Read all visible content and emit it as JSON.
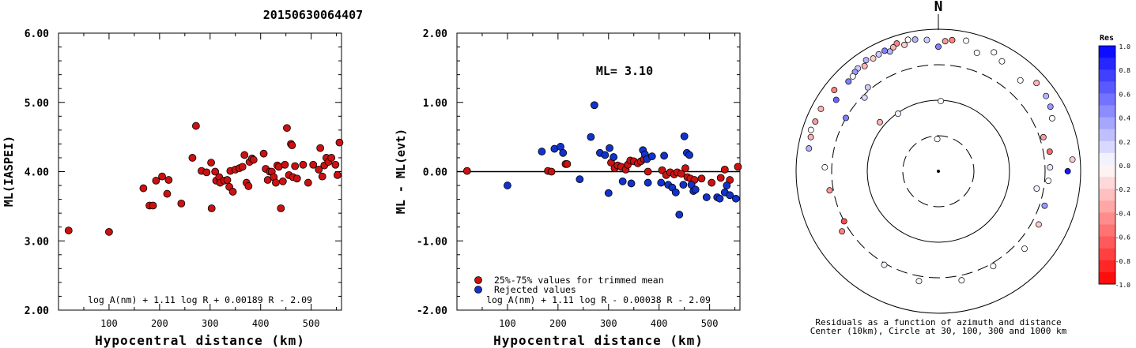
{
  "title": "20150630064407",
  "colors": {
    "red": "#cc1111",
    "blue": "#1133cc",
    "ink": "#000000"
  },
  "chart_data": [
    {
      "type": "scatter",
      "xlabel": "Hypocentral distance (km)",
      "ylabel": "ML(IASPEI)",
      "xlim": [
        0,
        560
      ],
      "ylim": [
        2.0,
        6.0
      ],
      "xticks": [
        "100",
        "200",
        "300",
        "400",
        "500"
      ],
      "yticks": [
        "2.00",
        "3.00",
        "4.00",
        "5.00",
        "6.00"
      ],
      "formula": "log A(nm) + 1.11 log R + 0.00189 R - 2.09",
      "points": [
        [
          20,
          3.15
        ],
        [
          100,
          3.13
        ],
        [
          168,
          3.76
        ],
        [
          180,
          3.51
        ],
        [
          187,
          3.51
        ],
        [
          193,
          3.87
        ],
        [
          205,
          3.93
        ],
        [
          215,
          3.68
        ],
        [
          218,
          3.88
        ],
        [
          243,
          3.54
        ],
        [
          265,
          4.2
        ],
        [
          272,
          4.66
        ],
        [
          283,
          4.01
        ],
        [
          293,
          3.99
        ],
        [
          302,
          4.13
        ],
        [
          303,
          3.47
        ],
        [
          310,
          4.0
        ],
        [
          312,
          3.87
        ],
        [
          318,
          3.92
        ],
        [
          320,
          3.84
        ],
        [
          328,
          3.87
        ],
        [
          334,
          3.88
        ],
        [
          338,
          3.78
        ],
        [
          340,
          4.01
        ],
        [
          345,
          3.71
        ],
        [
          350,
          4.03
        ],
        [
          358,
          4.05
        ],
        [
          364,
          4.07
        ],
        [
          368,
          4.24
        ],
        [
          372,
          3.84
        ],
        [
          376,
          3.79
        ],
        [
          378,
          4.14
        ],
        [
          383,
          4.19
        ],
        [
          386,
          4.17
        ],
        [
          406,
          4.26
        ],
        [
          410,
          4.04
        ],
        [
          414,
          3.88
        ],
        [
          418,
          4.0
        ],
        [
          422,
          4.0
        ],
        [
          426,
          3.92
        ],
        [
          430,
          3.84
        ],
        [
          433,
          4.09
        ],
        [
          436,
          4.07
        ],
        [
          440,
          3.47
        ],
        [
          444,
          3.86
        ],
        [
          448,
          4.1
        ],
        [
          452,
          4.63
        ],
        [
          456,
          3.95
        ],
        [
          460,
          4.4
        ],
        [
          462,
          4.38
        ],
        [
          464,
          3.92
        ],
        [
          468,
          4.08
        ],
        [
          472,
          3.9
        ],
        [
          484,
          4.1
        ],
        [
          494,
          3.84
        ],
        [
          504,
          4.1
        ],
        [
          515,
          4.03
        ],
        [
          518,
          4.34
        ],
        [
          522,
          3.93
        ],
        [
          526,
          4.09
        ],
        [
          530,
          4.2
        ],
        [
          534,
          4.14
        ],
        [
          540,
          4.2
        ],
        [
          548,
          4.1
        ],
        [
          552,
          3.95
        ],
        [
          556,
          4.42
        ]
      ]
    },
    {
      "type": "scatter",
      "xlabel": "Hypocentral distance (km)",
      "ylabel": "ML - ML(evt)",
      "xlim": [
        0,
        560
      ],
      "ylim": [
        -2.0,
        2.0
      ],
      "xticks": [
        "100",
        "200",
        "300",
        "400",
        "500"
      ],
      "yticks": [
        "-2.00",
        "-1.00",
        "0.00",
        "1.00",
        "2.00"
      ],
      "annotation": "ML= 3.10",
      "formula": "log A(nm) + 1.11 log R - 0.00038 R - 2.09",
      "legend_position": "bottom-left",
      "series": [
        {
          "name": "25%-75% values for trimmed mean",
          "color": "#cc1111",
          "points": [
            [
              20,
              0.01
            ],
            [
              180,
              0.01
            ],
            [
              187,
              0.0
            ],
            [
              215,
              0.11
            ],
            [
              218,
              0.11
            ],
            [
              305,
              0.13
            ],
            [
              312,
              0.05
            ],
            [
              318,
              0.09
            ],
            [
              325,
              0.07
            ],
            [
              334,
              0.03
            ],
            [
              338,
              0.1
            ],
            [
              343,
              0.16
            ],
            [
              350,
              0.15
            ],
            [
              358,
              0.12
            ],
            [
              364,
              0.15
            ],
            [
              370,
              0.18
            ],
            [
              378,
              0.0
            ],
            [
              406,
              0.02
            ],
            [
              414,
              -0.05
            ],
            [
              422,
              -0.01
            ],
            [
              430,
              -0.04
            ],
            [
              436,
              -0.01
            ],
            [
              444,
              -0.03
            ],
            [
              452,
              0.05
            ],
            [
              456,
              -0.08
            ],
            [
              462,
              -0.1
            ],
            [
              470,
              -0.12
            ],
            [
              484,
              -0.1
            ],
            [
              504,
              -0.16
            ],
            [
              522,
              -0.09
            ],
            [
              530,
              0.03
            ],
            [
              540,
              -0.12
            ],
            [
              556,
              0.07
            ]
          ]
        },
        {
          "name": "Rejected values",
          "color": "#1133cc",
          "points": [
            [
              100,
              -0.2
            ],
            [
              168,
              0.29
            ],
            [
              193,
              0.33
            ],
            [
              205,
              0.36
            ],
            [
              210,
              0.27
            ],
            [
              243,
              -0.11
            ],
            [
              265,
              0.5
            ],
            [
              272,
              0.96
            ],
            [
              283,
              0.27
            ],
            [
              293,
              0.24
            ],
            [
              300,
              -0.31
            ],
            [
              302,
              0.34
            ],
            [
              310,
              0.21
            ],
            [
              328,
              -0.14
            ],
            [
              345,
              -0.17
            ],
            [
              368,
              0.31
            ],
            [
              372,
              0.25
            ],
            [
              376,
              0.18
            ],
            [
              378,
              -0.16
            ],
            [
              386,
              0.22
            ],
            [
              404,
              -0.16
            ],
            [
              410,
              0.23
            ],
            [
              418,
              -0.19
            ],
            [
              426,
              -0.23
            ],
            [
              433,
              -0.3
            ],
            [
              440,
              -0.62
            ],
            [
              448,
              -0.19
            ],
            [
              450,
              0.51
            ],
            [
              455,
              0.27
            ],
            [
              460,
              0.24
            ],
            [
              464,
              -0.19
            ],
            [
              468,
              -0.28
            ],
            [
              472,
              -0.26
            ],
            [
              494,
              -0.37
            ],
            [
              515,
              -0.37
            ],
            [
              520,
              -0.39
            ],
            [
              530,
              -0.3
            ],
            [
              534,
              -0.2
            ],
            [
              540,
              -0.34
            ],
            [
              552,
              -0.39
            ]
          ]
        }
      ]
    },
    {
      "type": "polar",
      "north_label": "N",
      "caption_line1": "Residuals as a function of azimuth and distance",
      "caption_line2": "Center (10km), Circle at 30, 100, 300 and 1000 km",
      "colorbar_title": "Res",
      "colorbar_ticks": [
        "1.0",
        "0.8",
        "0.6",
        "0.4",
        "0.2",
        "0.0",
        "-0.2",
        "-0.4",
        "-0.6",
        "-0.8",
        "-1.0"
      ],
      "stations": [
        {
          "az": -2,
          "dist": 30,
          "res": 0.0
        },
        {
          "az": 2,
          "dist": 110,
          "res": 0.0
        },
        {
          "az": -35,
          "dist": 110,
          "res": 0.05
        },
        {
          "az": -50,
          "dist": 135,
          "res": -0.3
        },
        {
          "az": -45,
          "dist": 350,
          "res": 0.15
        },
        {
          "az": -40,
          "dist": 420,
          "res": 0.2
        },
        {
          "az": -60,
          "dist": 380,
          "res": 0.5
        },
        {
          "az": -75,
          "dist": 900,
          "res": -0.3
        },
        {
          "az": -88,
          "dist": 480,
          "res": 0.0
        },
        {
          "az": -100,
          "dist": 430,
          "res": -0.4
        },
        {
          "az": -118,
          "dist": 380,
          "res": -0.7
        },
        {
          "az": -122,
          "dist": 480,
          "res": -0.5
        },
        {
          "az": -150,
          "dist": 400,
          "res": 0.05
        },
        {
          "az": -170,
          "dist": 450,
          "res": -0.05
        },
        {
          "az": 168,
          "dist": 450,
          "res": 0.0
        },
        {
          "az": 150,
          "dist": 420,
          "res": 0.0
        },
        {
          "az": 132,
          "dist": 520,
          "res": 0.0
        },
        {
          "az": 118,
          "dist": 480,
          "res": -0.2
        },
        {
          "az": 108,
          "dist": 450,
          "res": 0.4
        },
        {
          "az": 100,
          "dist": 300,
          "res": 0.05
        },
        {
          "az": 95,
          "dist": 430,
          "res": 0.0
        },
        {
          "az": 88,
          "dist": 450,
          "res": 0.1
        },
        {
          "az": 80,
          "dist": 470,
          "res": -0.6
        },
        {
          "az": 72,
          "dist": 430,
          "res": -0.4
        },
        {
          "az": 90,
          "dist": 820,
          "res": 0.9
        },
        {
          "az": 85,
          "dist": 980,
          "res": -0.2
        },
        {
          "az": 65,
          "dist": 720,
          "res": 0.0
        },
        {
          "az": 60,
          "dist": 820,
          "res": 0.4
        },
        {
          "az": 55,
          "dist": 880,
          "res": 0.3
        },
        {
          "az": 48,
          "dist": 900,
          "res": -0.3
        },
        {
          "az": 42,
          "dist": 650,
          "res": 0.0
        },
        {
          "az": 30,
          "dist": 760,
          "res": 0.0
        },
        {
          "az": 25,
          "dist": 880,
          "res": 0.0
        },
        {
          "az": 18,
          "dist": 700,
          "res": 0.0
        },
        {
          "az": 12,
          "dist": 950,
          "res": 0.0
        },
        {
          "az": 6,
          "dist": 900,
          "res": -0.5
        },
        {
          "az": 3,
          "dist": 850,
          "res": -0.4
        },
        {
          "az": 0,
          "dist": 700,
          "res": 0.5
        },
        {
          "az": -5,
          "dist": 900,
          "res": 0.2
        },
        {
          "az": -10,
          "dist": 960,
          "res": 0.3
        },
        {
          "az": -13,
          "dist": 1000,
          "res": 0.0
        },
        {
          "az": -15,
          "dist": 870,
          "res": -0.2
        },
        {
          "az": -18,
          "dist": 980,
          "res": -0.5
        },
        {
          "az": -20,
          "dist": 900,
          "res": -0.3
        },
        {
          "az": -22,
          "dist": 820,
          "res": 0.3
        },
        {
          "az": -24,
          "dist": 900,
          "res": 0.5
        },
        {
          "az": -27,
          "dist": 880,
          "res": 0.2
        },
        {
          "az": -30,
          "dist": 850,
          "res": -0.2
        },
        {
          "az": -33,
          "dist": 920,
          "res": 0.3
        },
        {
          "az": -35,
          "dist": 800,
          "res": -0.3
        },
        {
          "az": -38,
          "dist": 860,
          "res": 0.2
        },
        {
          "az": -40,
          "dist": 830,
          "res": 0.4
        },
        {
          "az": -42,
          "dist": 780,
          "res": 0.0
        },
        {
          "az": -45,
          "dist": 760,
          "res": 0.5
        },
        {
          "az": -52,
          "dist": 900,
          "res": -0.5
        },
        {
          "az": -55,
          "dist": 700,
          "res": 0.6
        },
        {
          "az": -62,
          "dist": 930,
          "res": -0.3
        },
        {
          "az": -68,
          "dist": 920,
          "res": -0.4
        },
        {
          "az": -72,
          "dist": 960,
          "res": 0.0
        },
        {
          "az": -80,
          "dist": 880,
          "res": 0.3
        }
      ]
    }
  ]
}
